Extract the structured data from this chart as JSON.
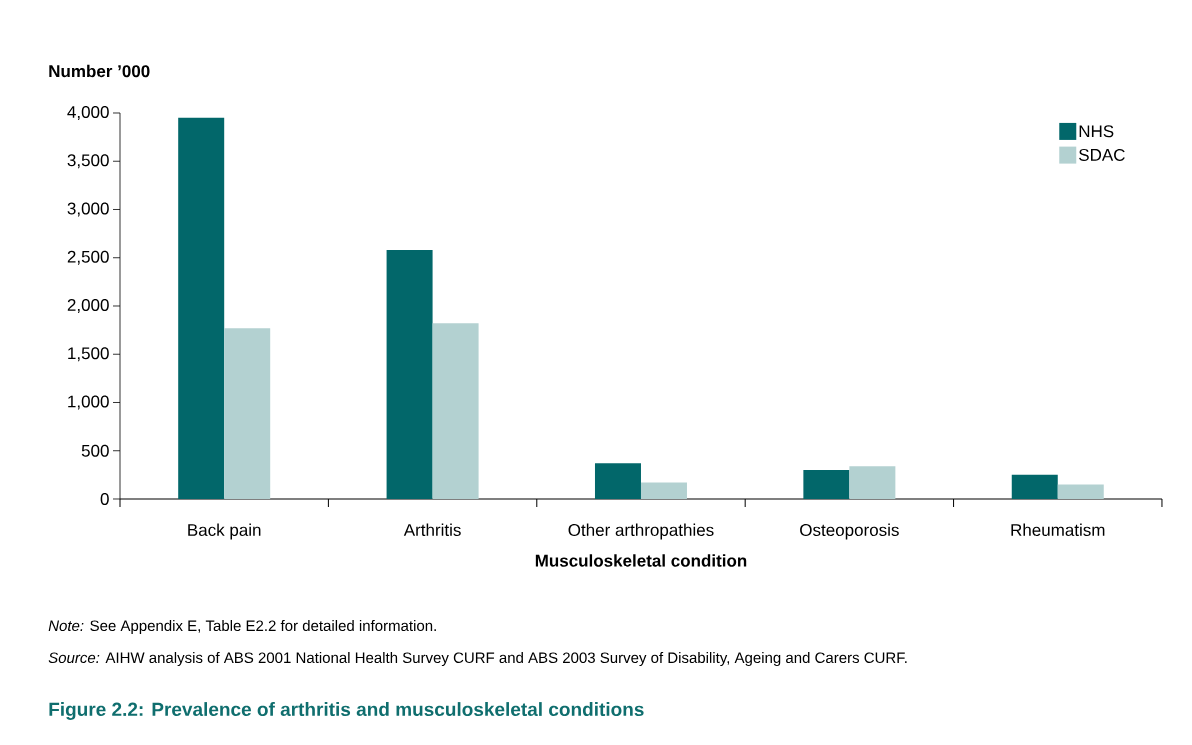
{
  "chart_data": {
    "type": "bar",
    "title": "Figure 2.2: Prevalence of arthritis and musculoskeletal conditions",
    "xlabel": "Musculoskeletal condition",
    "ylabel": "Number ’000",
    "categories": [
      "Back pain",
      "Arthritis",
      "Other arthropathies",
      "Osteoporosis",
      "Rheumatism"
    ],
    "series": [
      {
        "name": "NHS",
        "color": "#02676a",
        "values": [
          3950,
          2580,
          370,
          300,
          250
        ]
      },
      {
        "name": "SDAC",
        "color": "#b3d1d1",
        "values": [
          1770,
          1820,
          170,
          340,
          150
        ]
      }
    ],
    "ylim": [
      0,
      4000
    ],
    "yticks": [
      0,
      500,
      {
        "value": 1000,
        "label": "1,000"
      },
      {
        "value": 1500,
        "label": "1,500"
      },
      {
        "value": 2000,
        "label": "2,000"
      },
      {
        "value": 2500,
        "label": "2,500"
      },
      {
        "value": 3000,
        "label": "3,000"
      },
      {
        "value": 3500,
        "label": "3,500"
      },
      {
        "value": 4000,
        "label": "4,000"
      }
    ],
    "grid": false,
    "legend": "top right",
    "annotations": [
      "*Note:* See Appendix E, Table E2.2 for detailed information.",
      "*Source:* AIHW analysis of ABS 2001 National Health Survey CURF and ABS 2003 Survey of Disability, Ageing and Carers CURF."
    ]
  }
}
